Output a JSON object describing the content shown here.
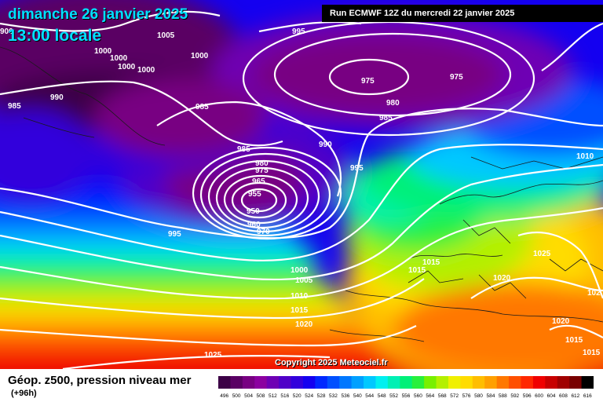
{
  "header": {
    "date_text": "dimanche 26 janvier 2025",
    "time_text": "13:00 locale",
    "run_text": "Run ECMWF 12Z du mercredi 22 janvier 2025"
  },
  "copyright": "Copyright 2025 Meteociel.fr",
  "footer": {
    "title": "Géop. z500, pression niveau mer",
    "subtitle": "(+96h)"
  },
  "legend": {
    "values": [
      "496",
      "500",
      "504",
      "508",
      "512",
      "516",
      "520",
      "524",
      "528",
      "532",
      "536",
      "540",
      "544",
      "548",
      "552",
      "556",
      "560",
      "564",
      "568",
      "572",
      "576",
      "580",
      "584",
      "588",
      "592",
      "596",
      "600",
      "604",
      "608",
      "612",
      "616"
    ],
    "colors": [
      "#3c0046",
      "#5a0064",
      "#780082",
      "#8c00a0",
      "#6e00b4",
      "#5000c8",
      "#3200dc",
      "#1400f0",
      "#0028ff",
      "#0050ff",
      "#0078ff",
      "#00a0ff",
      "#00c8ff",
      "#00f0f0",
      "#00f0b4",
      "#00f078",
      "#28f03c",
      "#78f000",
      "#b4f000",
      "#f0f000",
      "#ffdc00",
      "#ffbe00",
      "#ffa000",
      "#ff7800",
      "#ff5000",
      "#ff2800",
      "#f00000",
      "#c80000",
      "#a00000",
      "#780000",
      "#000000"
    ]
  },
  "isobar_labels": [
    "1005",
    "995",
    "1000",
    "1000",
    "1000",
    "1000",
    "1000",
    "985",
    "990",
    "985",
    "975",
    "975",
    "980",
    "985",
    "985",
    "990",
    "995",
    "980",
    "975",
    "965",
    "955",
    "950",
    "960",
    "970",
    "995",
    "1010",
    "1015",
    "1015",
    "1025",
    "1020",
    "1000",
    "1005",
    "1010",
    "1015",
    "1020",
    "1025",
    "1020",
    "1015",
    "1015",
    "102",
    "900"
  ],
  "colors": {
    "isobar": "#ffffff",
    "border": "#1a1a1a",
    "title": "#00e0ff"
  }
}
